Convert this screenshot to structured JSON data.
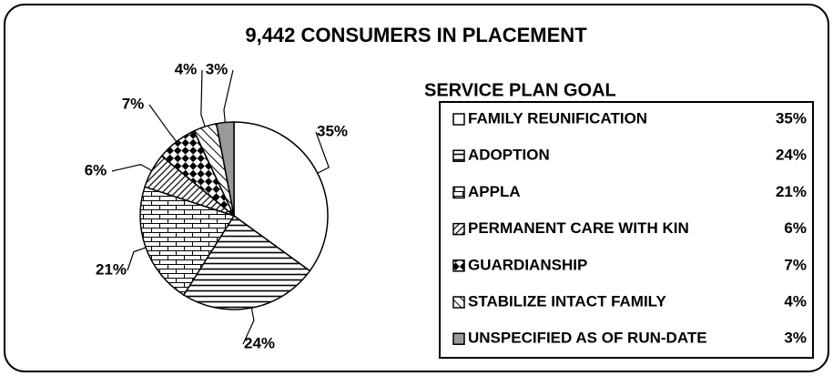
{
  "chart_data": {
    "type": "pie",
    "title": "9,442 CONSUMERS IN PLACEMENT",
    "legend_title": "SERVICE PLAN GOAL",
    "categories": [
      "FAMILY REUNIFICATION",
      "ADOPTION",
      "APPLA",
      "PERMANENT CARE WITH KIN",
      "GUARDIANSHIP",
      "STABILIZE INTACT FAMILY",
      "UNSPECIFIED AS OF RUN-DATE"
    ],
    "values": [
      35,
      24,
      21,
      6,
      7,
      4,
      3
    ],
    "value_labels": [
      "35%",
      "24%",
      "21%",
      "6%",
      "7%",
      "4%",
      "3%"
    ]
  }
}
